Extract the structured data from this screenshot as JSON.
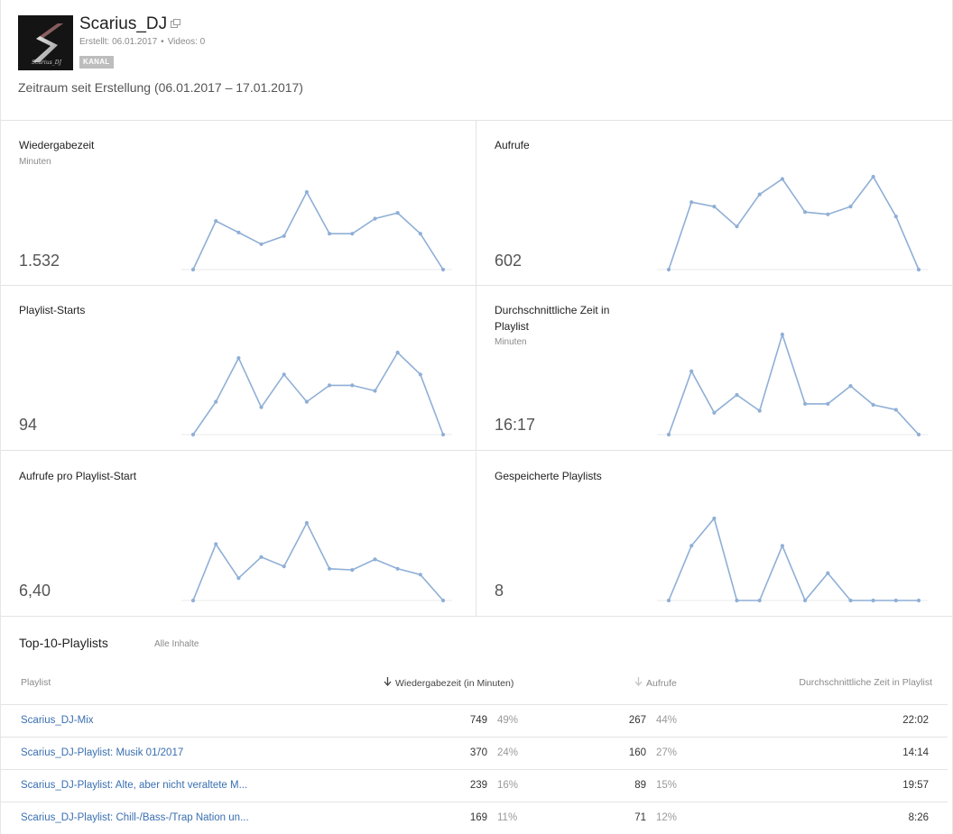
{
  "channel": {
    "name": "Scarius_DJ",
    "avatar_caption": "Scarius_DJ",
    "created": "Erstellt: 06.01.2017",
    "videos": "Videos: 0",
    "badge": "KANAL",
    "range": "Zeitraum seit Erstellung (06.01.2017 – 17.01.2017)",
    "icons": {
      "external": "external-link-icon"
    }
  },
  "metrics": [
    {
      "title": "Wiedergabezeit",
      "subtitle": "Minuten",
      "value": "1.532",
      "chart_data": {
        "type": "line",
        "values": [
          0,
          42,
          32,
          22,
          29,
          67,
          31,
          31,
          44,
          49,
          31,
          0
        ]
      }
    },
    {
      "title": "Aufrufe",
      "subtitle": "",
      "value": "602",
      "chart_data": {
        "type": "line",
        "values": [
          0,
          61,
          57,
          39,
          68,
          82,
          52,
          50,
          57,
          84,
          48,
          0
        ]
      }
    },
    {
      "title": "Playlist-Starts",
      "subtitle": "",
      "value": "94",
      "chart_data": {
        "type": "line",
        "values": [
          0,
          30,
          70,
          25,
          55,
          30,
          45,
          45,
          40,
          75,
          55,
          0
        ]
      }
    },
    {
      "title": "Durchschnittliche Zeit in Playlist",
      "subtitle": "Minuten",
      "value": "16:17",
      "chart_data": {
        "type": "line",
        "values": [
          0,
          64,
          22,
          40,
          24,
          101,
          31,
          31,
          49,
          30,
          25,
          0
        ]
      }
    },
    {
      "title": "Aufrufe pro Playlist-Start",
      "subtitle": "",
      "value": "6,40",
      "chart_data": {
        "type": "line",
        "values": [
          0,
          48,
          19,
          37,
          29,
          66,
          27,
          26,
          35,
          27,
          22,
          0
        ]
      }
    },
    {
      "title": "Gespeicherte Playlists",
      "subtitle": "",
      "value": "8",
      "chart_data": {
        "type": "line",
        "values": [
          0,
          2,
          3,
          0,
          0,
          2,
          0,
          1,
          0,
          0,
          0,
          0
        ]
      }
    }
  ],
  "top": {
    "title": "Top-10-Playlists",
    "subtitle": "Alle Inhalte",
    "columns": {
      "playlist": "Playlist",
      "watch_time": "Wiedergabezeit (in Minuten)",
      "views": "Aufrufe",
      "avg_time": "Durchschnittliche Zeit in Playlist"
    },
    "sort_icon": "arrow-down-icon",
    "rows": [
      {
        "name": "Scarius_DJ-Mix",
        "watch": "749",
        "watch_pct": "49%",
        "views": "267",
        "views_pct": "44%",
        "avg": "22:02"
      },
      {
        "name": "Scarius_DJ-Playlist: Musik 01/2017",
        "watch": "370",
        "watch_pct": "24%",
        "views": "160",
        "views_pct": "27%",
        "avg": "14:14"
      },
      {
        "name": "Scarius_DJ-Playlist: Alte, aber nicht veraltete M...",
        "watch": "239",
        "watch_pct": "16%",
        "views": "89",
        "views_pct": "15%",
        "avg": "19:57"
      },
      {
        "name": "Scarius_DJ-Playlist: Chill-/Bass-/Trap Nation un...",
        "watch": "169",
        "watch_pct": "11%",
        "views": "71",
        "views_pct": "12%",
        "avg": "8:26"
      }
    ]
  }
}
